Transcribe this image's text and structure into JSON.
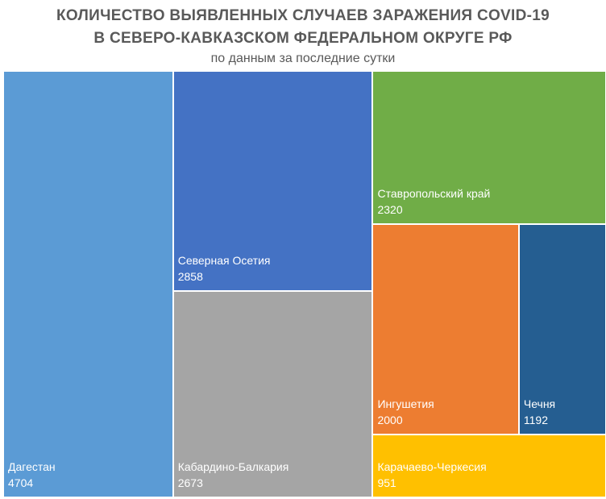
{
  "header": {
    "title_line1": "КОЛИЧЕСТВО ВЫЯВЛЕННЫХ СЛУЧАЕВ ЗАРАЖЕНИЯ COVID-19",
    "title_line2": "В СЕВЕРО-КАВКАЗСКОМ ФЕДЕРАЛЬНОМ ОКРУГЕ РФ",
    "subtitle": "по данным за последние сутки"
  },
  "chart_data": {
    "type": "treemap",
    "title": "КОЛИЧЕСТВО ВЫЯВЛЕННЫХ СЛУЧАЕВ ЗАРАЖЕНИЯ COVID-19 В СЕВЕРО-КАВКАЗСКОМ ФЕДЕРАЛЬНОМ ОКРУГЕ РФ",
    "subtitle": "по данным за последние сутки",
    "items": [
      {
        "name": "Дагестан",
        "value": 4704,
        "color": "#5B9BD5"
      },
      {
        "name": "Северная Осетия",
        "value": 2858,
        "color": "#4472C4"
      },
      {
        "name": "Кабардино-Балкария",
        "value": 2673,
        "color": "#A5A5A5"
      },
      {
        "name": "Ставропольский край",
        "value": 2320,
        "color": "#70AD47"
      },
      {
        "name": "Ингушетия",
        "value": 2000,
        "color": "#ED7D31"
      },
      {
        "name": "Чечня",
        "value": 1192,
        "color": "#255E91"
      },
      {
        "name": "Карачаево-Черкесия",
        "value": 951,
        "color": "#FFC000"
      }
    ]
  }
}
